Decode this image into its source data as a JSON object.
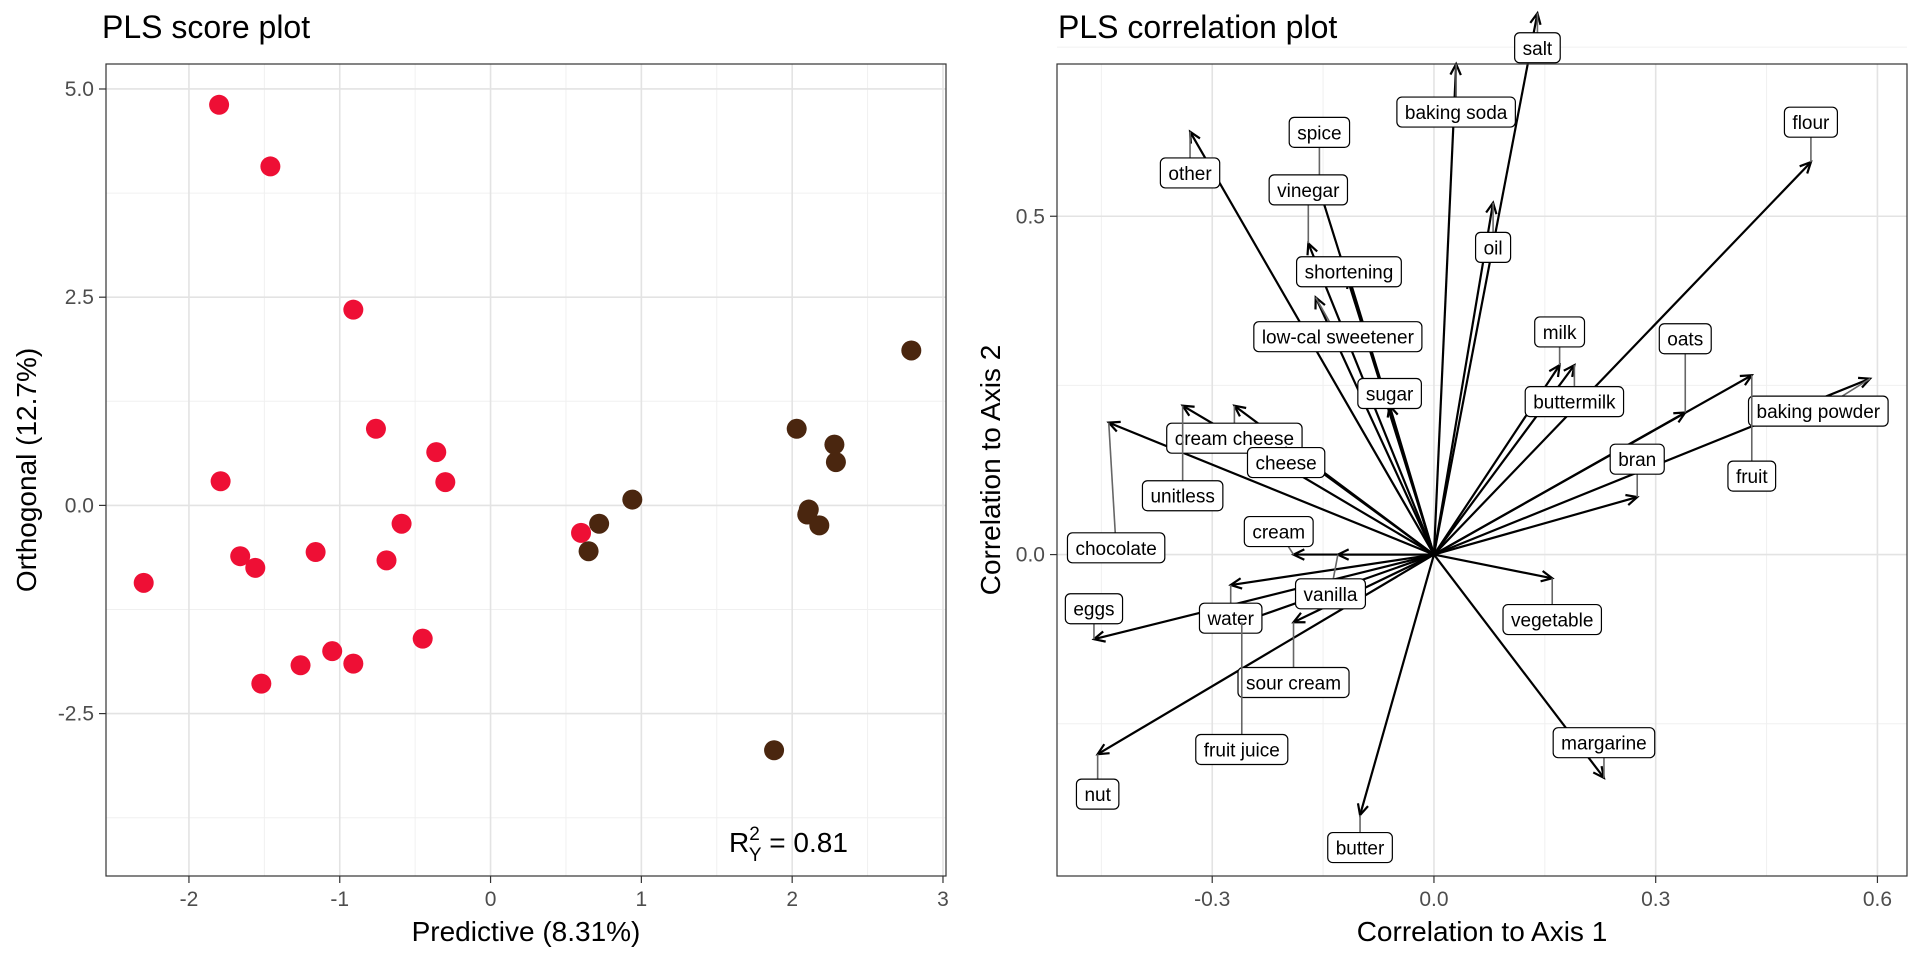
{
  "chart_data": [
    {
      "type": "scatter",
      "title": "PLS score plot",
      "xlabel": "Predictive (8.31%)",
      "ylabel": "Orthogonal (12.7%)",
      "xlim": [
        -2.55,
        3.02
      ],
      "ylim": [
        -4.45,
        5.3
      ],
      "xticks": [
        -2,
        -1,
        0,
        1,
        2,
        3
      ],
      "xtick_labels": [
        "-2",
        "-1",
        "0",
        "1",
        "2",
        "3"
      ],
      "yticks": [
        -2.5,
        0.0,
        2.5,
        5.0
      ],
      "ytick_labels": [
        "-2.5",
        "0.0",
        "2.5",
        "5.0"
      ],
      "grid": true,
      "annotation": {
        "base": "R",
        "sup": "2",
        "sub": "Y",
        "text": " = 0.81"
      },
      "colors": {
        "group_a": "#ee0f35",
        "group_b": "#4a260f"
      },
      "series": [
        {
          "color_key": "group_a",
          "points": [
            [
              -1.8,
              4.81
            ],
            [
              -1.46,
              4.07
            ],
            [
              -0.91,
              2.35
            ],
            [
              -0.76,
              0.92
            ],
            [
              -1.79,
              0.29
            ],
            [
              -0.36,
              0.64
            ],
            [
              -0.3,
              0.28
            ],
            [
              -0.59,
              -0.22
            ],
            [
              -1.16,
              -0.56
            ],
            [
              -0.69,
              -0.66
            ],
            [
              -1.66,
              -0.61
            ],
            [
              -1.56,
              -0.75
            ],
            [
              -2.3,
              -0.93
            ],
            [
              -0.45,
              -1.6
            ],
            [
              -1.05,
              -1.75
            ],
            [
              -1.26,
              -1.92
            ],
            [
              -0.91,
              -1.9
            ],
            [
              -1.52,
              -2.14
            ],
            [
              0.6,
              -0.33
            ]
          ]
        },
        {
          "color_key": "group_b",
          "points": [
            [
              2.79,
              1.86
            ],
            [
              2.03,
              0.92
            ],
            [
              2.28,
              0.73
            ],
            [
              2.29,
              0.52
            ],
            [
              0.94,
              0.07
            ],
            [
              2.11,
              -0.05
            ],
            [
              2.1,
              -0.11
            ],
            [
              2.18,
              -0.24
            ],
            [
              0.72,
              -0.22
            ],
            [
              0.65,
              -0.55
            ],
            [
              1.88,
              -2.94
            ]
          ]
        }
      ]
    },
    {
      "type": "biplot",
      "title": "PLS correlation plot",
      "xlabel": "Correlation to Axis 1",
      "ylabel": "Correlation to Axis 2",
      "xlim": [
        -0.51,
        0.64
      ],
      "ylim": [
        -0.475,
        0.725
      ],
      "xticks": [
        -0.3,
        0.0,
        0.3,
        0.6
      ],
      "xtick_labels": [
        "-0.3",
        "0.0",
        "0.3",
        "0.6"
      ],
      "yticks": [
        0.0,
        0.5
      ],
      "ytick_labels": [
        "0.0",
        "0.5"
      ],
      "grid": true,
      "variables": [
        {
          "name": "salt",
          "x": 0.14,
          "y": 0.8,
          "lx": 0.14,
          "ly": 0.749
        },
        {
          "name": "baking soda",
          "x": 0.03,
          "y": 0.725,
          "lx": 0.03,
          "ly": 0.654
        },
        {
          "name": "flour",
          "x": 0.51,
          "y": 0.58,
          "lx": 0.51,
          "ly": 0.639
        },
        {
          "name": "other",
          "x": -0.33,
          "y": 0.625,
          "lx": -0.33,
          "ly": 0.564
        },
        {
          "name": "spice",
          "x": -0.155,
          "y": 0.54,
          "lx": -0.155,
          "ly": 0.624
        },
        {
          "name": "vinegar",
          "x": -0.17,
          "y": 0.46,
          "lx": -0.17,
          "ly": 0.539
        },
        {
          "name": "oil",
          "x": 0.08,
          "y": 0.52,
          "lx": 0.08,
          "ly": 0.454
        },
        {
          "name": "shortening",
          "x": -0.115,
          "y": 0.41,
          "lx": -0.115,
          "ly": 0.418
        },
        {
          "name": "low-cal sweetener",
          "x": -0.16,
          "y": 0.38,
          "lx": -0.13,
          "ly": 0.322
        },
        {
          "name": "milk",
          "x": 0.17,
          "y": 0.28,
          "lx": 0.17,
          "ly": 0.329
        },
        {
          "name": "oats",
          "x": 0.34,
          "y": 0.21,
          "lx": 0.34,
          "ly": 0.319
        },
        {
          "name": "buttermilk",
          "x": 0.19,
          "y": 0.28,
          "lx": 0.19,
          "ly": 0.226
        },
        {
          "name": "sugar",
          "x": -0.06,
          "y": 0.22,
          "lx": -0.06,
          "ly": 0.238
        },
        {
          "name": "baking powder",
          "x": 0.59,
          "y": 0.26,
          "lx": 0.52,
          "ly": 0.212
        },
        {
          "name": "cream cheese",
          "x": -0.27,
          "y": 0.22,
          "lx": -0.27,
          "ly": 0.172
        },
        {
          "name": "bran",
          "x": 0.275,
          "y": 0.085,
          "lx": 0.275,
          "ly": 0.141
        },
        {
          "name": "fruit",
          "x": 0.43,
          "y": 0.265,
          "lx": 0.43,
          "ly": 0.116
        },
        {
          "name": "cheese",
          "x": -0.2,
          "y": 0.16,
          "lx": -0.2,
          "ly": 0.136
        },
        {
          "name": "unitless",
          "x": -0.34,
          "y": 0.22,
          "lx": -0.34,
          "ly": 0.087
        },
        {
          "name": "chocolate",
          "x": -0.44,
          "y": 0.195,
          "lx": -0.43,
          "ly": 0.01
        },
        {
          "name": "cream",
          "x": -0.19,
          "y": 0.0,
          "lx": -0.21,
          "ly": 0.034
        },
        {
          "name": "eggs",
          "x": -0.46,
          "y": -0.125,
          "lx": -0.46,
          "ly": -0.08
        },
        {
          "name": "vanilla",
          "x": -0.13,
          "y": 0.0,
          "lx": -0.14,
          "ly": -0.058
        },
        {
          "name": "water",
          "x": -0.275,
          "y": -0.045,
          "lx": -0.275,
          "ly": -0.094
        },
        {
          "name": "vegetable",
          "x": 0.16,
          "y": -0.035,
          "lx": 0.16,
          "ly": -0.096
        },
        {
          "name": "sour cream",
          "x": -0.19,
          "y": -0.1,
          "lx": -0.19,
          "ly": -0.189
        },
        {
          "name": "margarine",
          "x": 0.23,
          "y": -0.33,
          "lx": 0.23,
          "ly": -0.278
        },
        {
          "name": "fruit juice",
          "x": -0.26,
          "y": -0.1,
          "lx": -0.26,
          "ly": -0.288
        },
        {
          "name": "nut",
          "x": -0.455,
          "y": -0.295,
          "lx": -0.455,
          "ly": -0.354
        },
        {
          "name": "butter",
          "x": -0.1,
          "y": -0.385,
          "lx": -0.1,
          "ly": -0.433
        }
      ]
    }
  ]
}
